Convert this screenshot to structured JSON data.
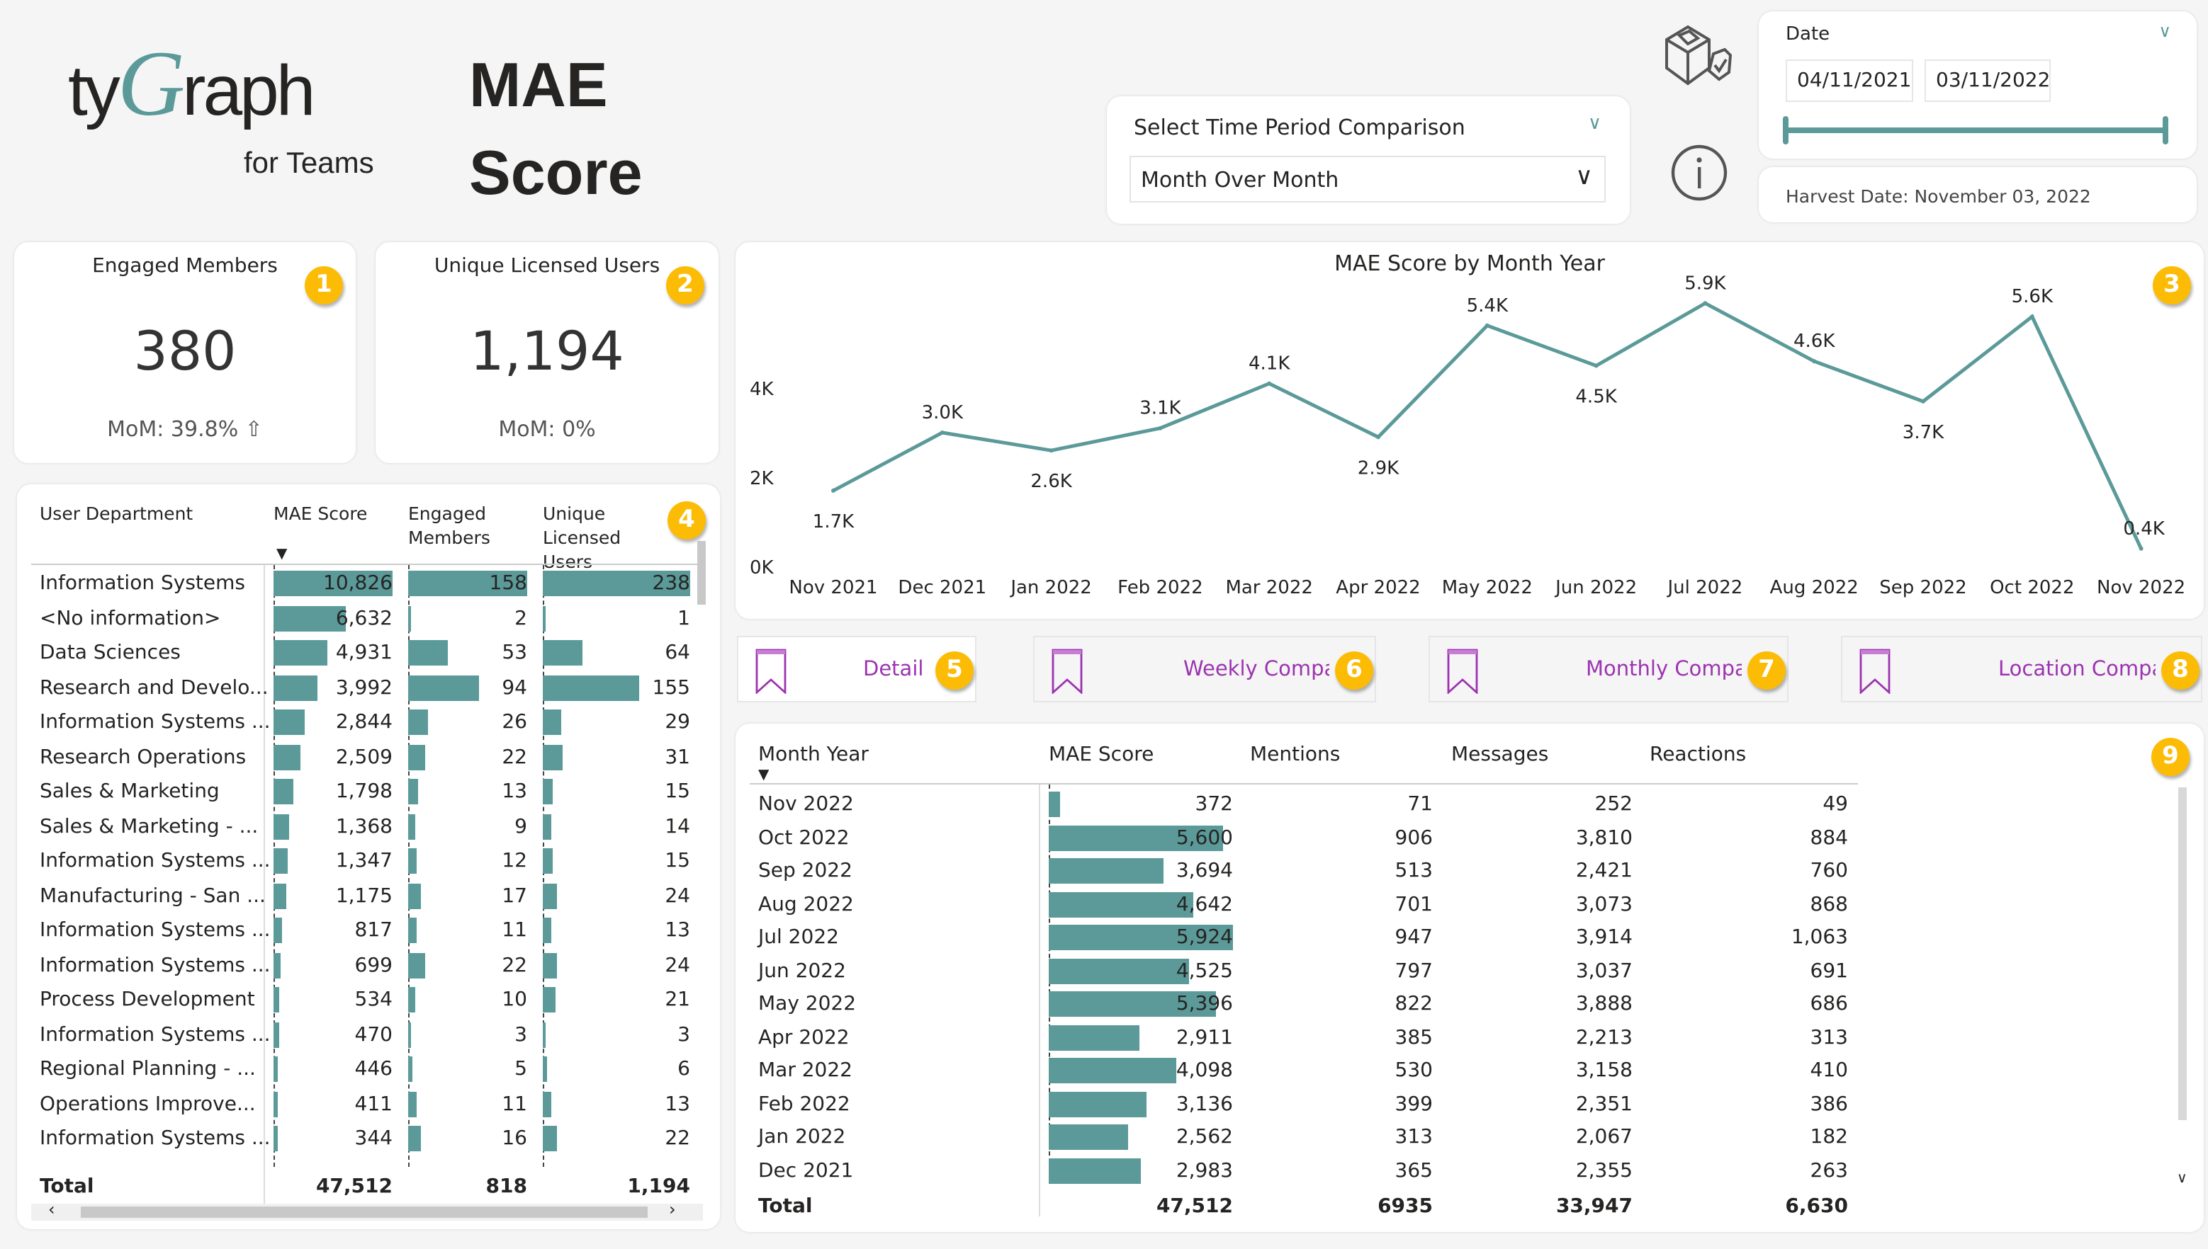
{
  "logo": {
    "brand_pre": "ty",
    "brand_g": "G",
    "brand_post": "raph",
    "sub": "for Teams"
  },
  "page_title": [
    "MAE",
    "Score"
  ],
  "time_period": {
    "label": "Select Time Period Comparison",
    "value": "Month Over Month"
  },
  "date_filter": {
    "label": "Date",
    "start": "04/11/2021",
    "end": "03/11/2022",
    "range_fill": 1.0
  },
  "harvest": "Harvest Date: November 03, 2022",
  "icons": {
    "cube": "cube-shield-check-icon",
    "info": "info-icon"
  },
  "kpis": [
    {
      "title": "Engaged Members",
      "value": "380",
      "sub": "MoM: 39.8% ⇧",
      "badge": "1"
    },
    {
      "title": "Unique Licensed Users",
      "value": "1,194",
      "sub": "MoM: 0%",
      "badge": "2"
    }
  ],
  "accent": "#5b9a99",
  "badge_color": "#fcbc05",
  "chart_data": {
    "type": "line",
    "title": "MAE Score by Month Year",
    "badge": "3",
    "categories": [
      "Nov 2021",
      "Dec 2021",
      "Jan 2022",
      "Feb 2022",
      "Mar 2022",
      "Apr 2022",
      "May 2022",
      "Jun 2022",
      "Jul 2022",
      "Aug 2022",
      "Sep 2022",
      "Oct 2022",
      "Nov 2022"
    ],
    "values": [
      1700,
      3000,
      2600,
      3100,
      4100,
      2900,
      5400,
      4500,
      5900,
      4600,
      3700,
      5600,
      400
    ],
    "labels": [
      "1.7K",
      "3.0K",
      "2.6K",
      "3.1K",
      "4.1K",
      "2.9K",
      "5.4K",
      "4.5K",
      "5.9K",
      "4.6K",
      "3.7K",
      "5.6K",
      "0.4K"
    ],
    "yticks": [
      "0K",
      "2K",
      "4K"
    ],
    "ylim": [
      0,
      6000
    ],
    "grid": false,
    "color": "#5b9a99"
  },
  "dept_table": {
    "badge": "4",
    "headers": [
      "User Department",
      "MAE Score",
      "Engaged Members",
      "Unique Licensed Users"
    ],
    "rows": [
      [
        "Information Systems",
        10826,
        "10,826",
        158,
        "158",
        238,
        "238"
      ],
      [
        "<No information>",
        6632,
        "6,632",
        2,
        "2",
        1,
        "1"
      ],
      [
        "Data Sciences",
        4931,
        "4,931",
        53,
        "53",
        64,
        "64"
      ],
      [
        "Research and Develo...",
        3992,
        "3,992",
        94,
        "94",
        155,
        "155"
      ],
      [
        "Information Systems ...",
        2844,
        "2,844",
        26,
        "26",
        29,
        "29"
      ],
      [
        "Research Operations",
        2509,
        "2,509",
        22,
        "22",
        31,
        "31"
      ],
      [
        "Sales & Marketing",
        1798,
        "1,798",
        13,
        "13",
        15,
        "15"
      ],
      [
        "Sales & Marketing - ...",
        1368,
        "1,368",
        9,
        "9",
        14,
        "14"
      ],
      [
        "Information Systems ...",
        1347,
        "1,347",
        12,
        "12",
        15,
        "15"
      ],
      [
        "Manufacturing - San ...",
        1175,
        "1,175",
        17,
        "17",
        24,
        "24"
      ],
      [
        "Information Systems ...",
        817,
        "817",
        11,
        "11",
        13,
        "13"
      ],
      [
        "Information Systems ...",
        699,
        "699",
        22,
        "22",
        24,
        "24"
      ],
      [
        "Process Development",
        534,
        "534",
        10,
        "10",
        21,
        "21"
      ],
      [
        "Information Systems ...",
        470,
        "470",
        3,
        "3",
        3,
        "3"
      ],
      [
        "Regional Planning - ...",
        446,
        "446",
        5,
        "5",
        6,
        "6"
      ],
      [
        "Operations Improve...",
        411,
        "411",
        11,
        "11",
        13,
        "13"
      ],
      [
        "Information Systems ...",
        344,
        "344",
        16,
        "16",
        22,
        "22"
      ]
    ],
    "total": [
      "Total",
      "47,512",
      "818",
      "1,194"
    ]
  },
  "bookmarks": [
    {
      "label": "Detail Table",
      "badge": "5"
    },
    {
      "label": "Weekly Comparison",
      "badge": "6"
    },
    {
      "label": "Monthly Comparison",
      "badge": "7"
    },
    {
      "label": "Location Comparison",
      "badge": "8"
    }
  ],
  "month_table": {
    "badge": "9",
    "headers": [
      "Month Year",
      "MAE Score",
      "Mentions",
      "Messages",
      "Reactions"
    ],
    "rows": [
      [
        "Nov 2022",
        372,
        "372",
        "71",
        "252",
        "49"
      ],
      [
        "Oct 2022",
        5600,
        "5,600",
        "906",
        "3,810",
        "884"
      ],
      [
        "Sep 2022",
        3694,
        "3,694",
        "513",
        "2,421",
        "760"
      ],
      [
        "Aug 2022",
        4642,
        "4,642",
        "701",
        "3,073",
        "868"
      ],
      [
        "Jul 2022",
        5924,
        "5,924",
        "947",
        "3,914",
        "1,063"
      ],
      [
        "Jun 2022",
        4525,
        "4,525",
        "797",
        "3,037",
        "691"
      ],
      [
        "May 2022",
        5396,
        "5,396",
        "822",
        "3,888",
        "686"
      ],
      [
        "Apr 2022",
        2911,
        "2,911",
        "385",
        "2,213",
        "313"
      ],
      [
        "Mar 2022",
        4098,
        "4,098",
        "530",
        "3,158",
        "410"
      ],
      [
        "Feb 2022",
        3136,
        "3,136",
        "399",
        "2,351",
        "386"
      ],
      [
        "Jan 2022",
        2562,
        "2,562",
        "313",
        "2,067",
        "182"
      ],
      [
        "Dec 2021",
        2983,
        "2,983",
        "365",
        "2,355",
        "263"
      ]
    ],
    "total": [
      "Total",
      "47,512",
      "6935",
      "33,947",
      "6,630"
    ]
  }
}
